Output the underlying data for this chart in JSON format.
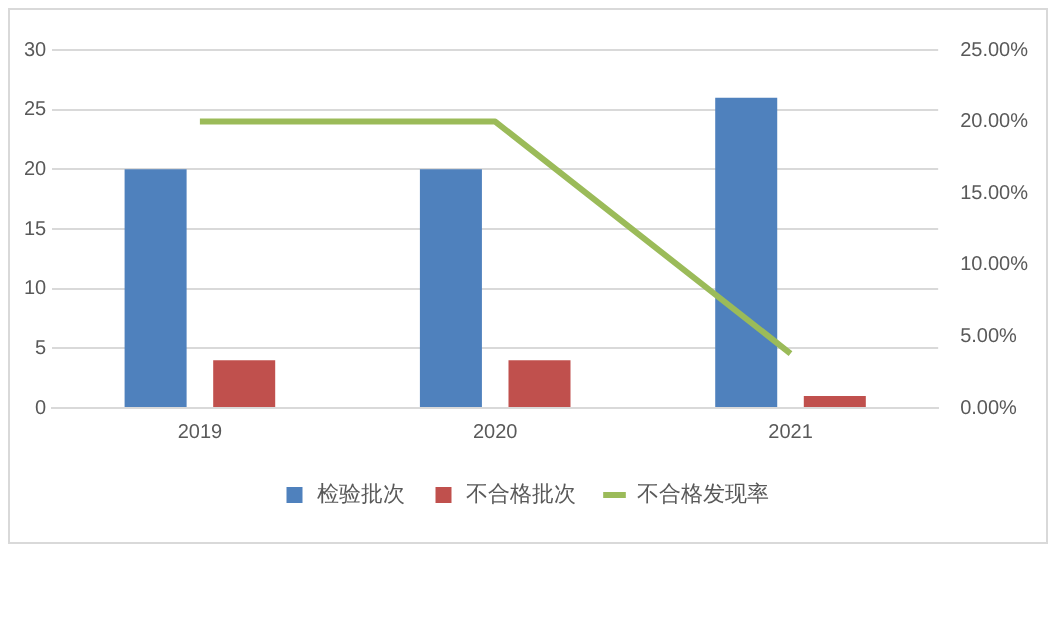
{
  "chart_data": {
    "type": "bar",
    "categories": [
      "2019",
      "2020",
      "2021"
    ],
    "series": [
      {
        "name": "检验批次",
        "color": "#4f81bd",
        "values": [
          20,
          20,
          26
        ]
      },
      {
        "name": "不合格批次",
        "color": "#c0504d",
        "values": [
          4,
          4,
          1
        ]
      },
      {
        "name": "不合格发现率",
        "color": "#9bbb59",
        "values": [
          20,
          20,
          3.8
        ],
        "type": "line",
        "axis": "y2"
      }
    ],
    "ylim": [
      0,
      30
    ],
    "yticks": [
      0,
      5,
      10,
      15,
      20,
      25,
      30
    ],
    "y2lim": [
      0,
      25
    ],
    "y2ticks": [
      {
        "value": 0,
        "label": "0.00%"
      },
      {
        "value": 5,
        "label": "5.00%"
      },
      {
        "value": 10,
        "label": "10.00%"
      },
      {
        "value": 15,
        "label": "15.00%"
      },
      {
        "value": 20,
        "label": "20.00%"
      },
      {
        "value": 25,
        "label": "25.00%"
      }
    ],
    "grid": "y",
    "legend": "bottom",
    "marker": "none",
    "line_style": "solid"
  }
}
